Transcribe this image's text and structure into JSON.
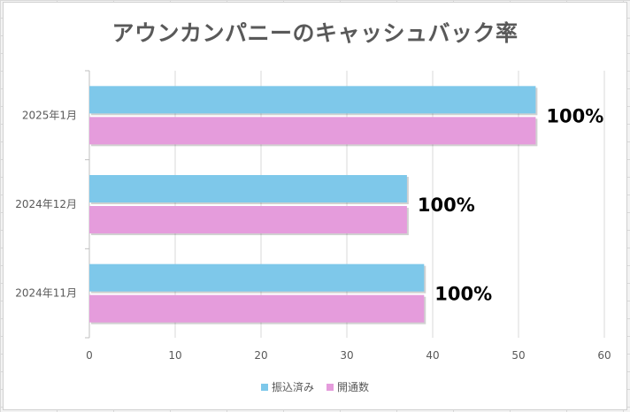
{
  "chart_data": {
    "type": "bar",
    "orientation": "horizontal",
    "title": "アウンカンパニーのキャッシュバック率",
    "categories": [
      "2025年1月",
      "2024年12月",
      "2024年11月"
    ],
    "series": [
      {
        "name": "振込済み",
        "values": [
          52,
          37,
          39
        ],
        "color": "#7ec8ea"
      },
      {
        "name": "開通数",
        "values": [
          52,
          37,
          39
        ],
        "color": "#e59cdc"
      }
    ],
    "annotations": [
      "100%",
      "100%",
      "100%"
    ],
    "xlim": [
      0,
      60
    ],
    "xticks": [
      0,
      10,
      20,
      30,
      40,
      50,
      60
    ],
    "legend_position": "bottom",
    "grid": true
  }
}
